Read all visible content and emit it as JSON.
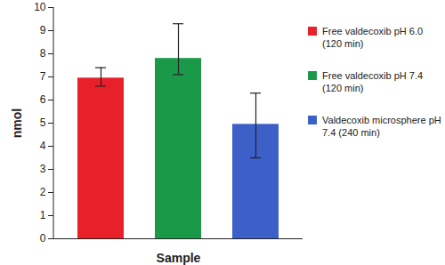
{
  "chart_data": {
    "type": "bar",
    "categories": [
      "Free valdecoxib pH 6.0 (120 min)",
      "Free valdecoxib pH 7.4 (120 min)",
      "Valdecoxib microsphere pH 7.4 (240 min)"
    ],
    "values": [
      6.95,
      7.8,
      4.95
    ],
    "error_lower": [
      0.35,
      0.7,
      1.45
    ],
    "error_upper": [
      0.45,
      1.5,
      1.35
    ],
    "colors": [
      "#e8202a",
      "#1a9a48",
      "#3d5fc8"
    ],
    "x_label": "Sample",
    "y_label": "nmol",
    "ylim": [
      0,
      10
    ],
    "yticks": [
      0,
      1,
      2,
      3,
      4,
      5,
      6,
      7,
      8,
      9,
      10
    ],
    "grid": false,
    "legend": "right",
    "tick_labels": "y"
  }
}
